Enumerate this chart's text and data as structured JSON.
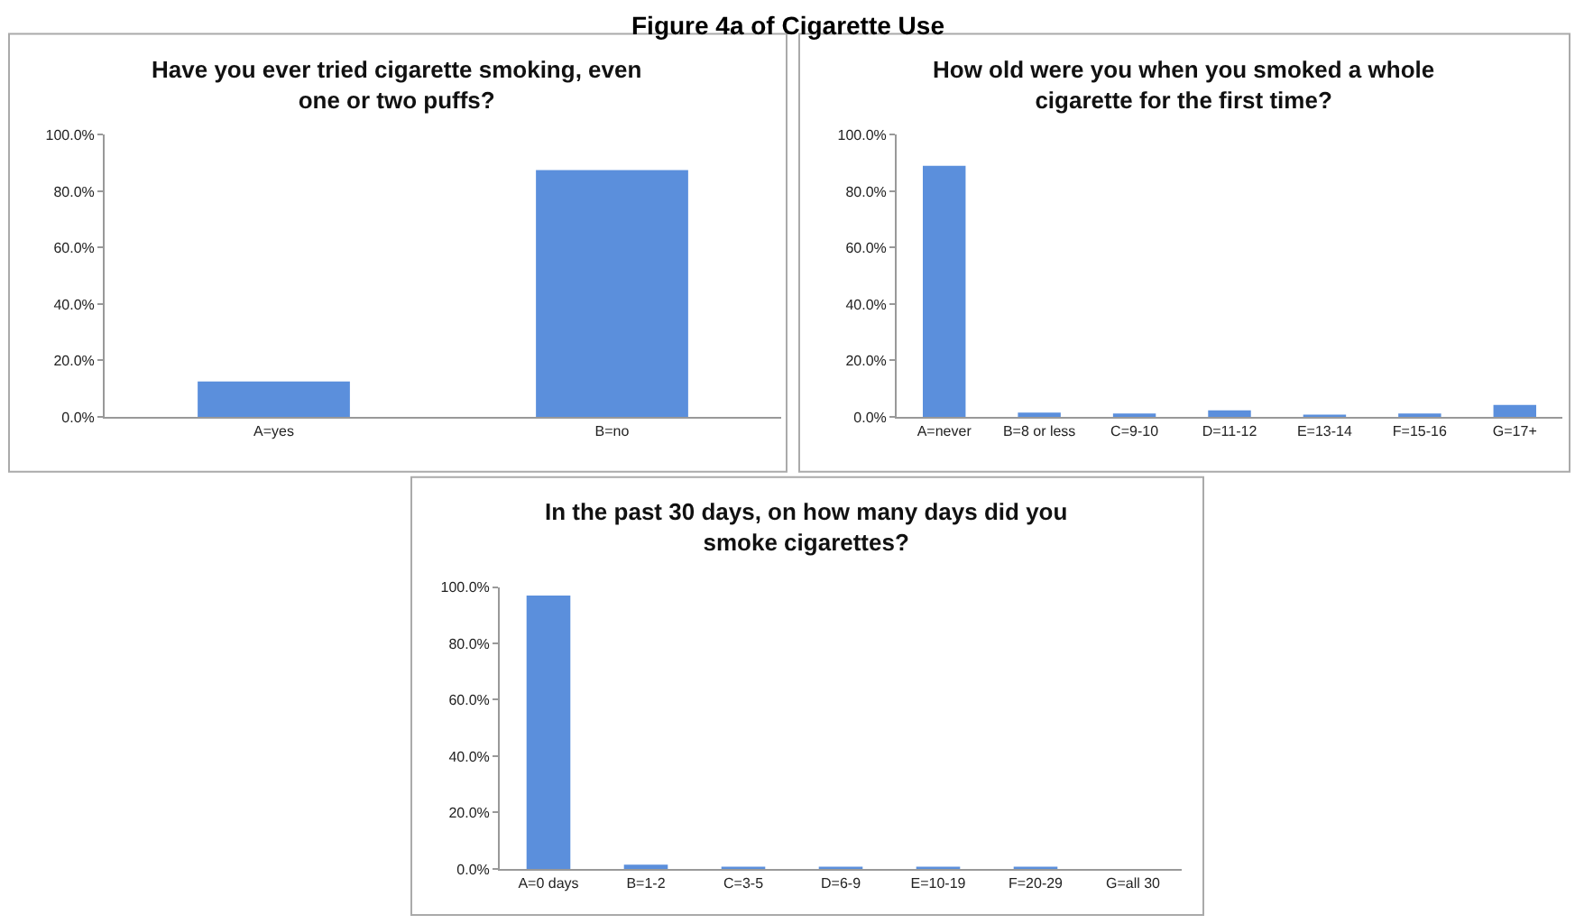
{
  "chart_data": [
    {
      "type": "bar",
      "title": "Have you ever tried cigarette smoking, even one or two puffs?",
      "annotations": [
        "Figure 4a of Cigarette Use"
      ],
      "categories": [
        "A=yes",
        "B=no"
      ],
      "values": [
        12.5,
        87.5
      ],
      "color": "#5b8fdc",
      "ylim": [
        0,
        100
      ],
      "yticks": [
        {
          "value": 0,
          "label": "0.0%"
        },
        {
          "value": 20,
          "label": "20.0%"
        },
        {
          "value": 40,
          "label": "40.0%"
        },
        {
          "value": 60,
          "label": "60.0%"
        },
        {
          "value": 80,
          "label": "80.0%"
        },
        {
          "value": 100,
          "label": "100.0%"
        }
      ],
      "grid": false
    },
    {
      "type": "bar",
      "title": "How old were you when you smoked a whole cigarette for the first time?",
      "categories": [
        "A=never",
        "B=8 or less",
        "C=9-10",
        "D=11-12",
        "E=13-14",
        "F=15-16",
        "G=17+"
      ],
      "values": [
        89,
        1.5,
        1.2,
        2.3,
        0.3,
        1.2,
        4.2
      ],
      "color": "#5b8fdc",
      "ylim": [
        0,
        100
      ],
      "yticks": [
        {
          "value": 0,
          "label": "0.0%"
        },
        {
          "value": 20,
          "label": "20.0%"
        },
        {
          "value": 40,
          "label": "40.0%"
        },
        {
          "value": 60,
          "label": "60.0%"
        },
        {
          "value": 80,
          "label": "80.0%"
        },
        {
          "value": 100,
          "label": "100.0%"
        }
      ],
      "grid": false
    },
    {
      "type": "bar",
      "title": "In the past 30 days, on how many days did you smoke cigarettes?",
      "categories": [
        "A=0 days",
        "B=1-2",
        "C=3-5",
        "D=6-9",
        "E=10-19",
        "F=20-29",
        "G=all 30"
      ],
      "values": [
        97,
        1.5,
        0.2,
        0.2,
        0.6,
        0.2,
        0
      ],
      "color": "#5b8fdc",
      "ylim": [
        0,
        100
      ],
      "yticks": [
        {
          "value": 0,
          "label": "0.0%"
        },
        {
          "value": 20,
          "label": "20.0%"
        },
        {
          "value": 40,
          "label": "40.0%"
        },
        {
          "value": 60,
          "label": "60.0%"
        },
        {
          "value": 80,
          "label": "80.0%"
        },
        {
          "value": 100,
          "label": "100.0%"
        }
      ],
      "grid": false
    }
  ]
}
